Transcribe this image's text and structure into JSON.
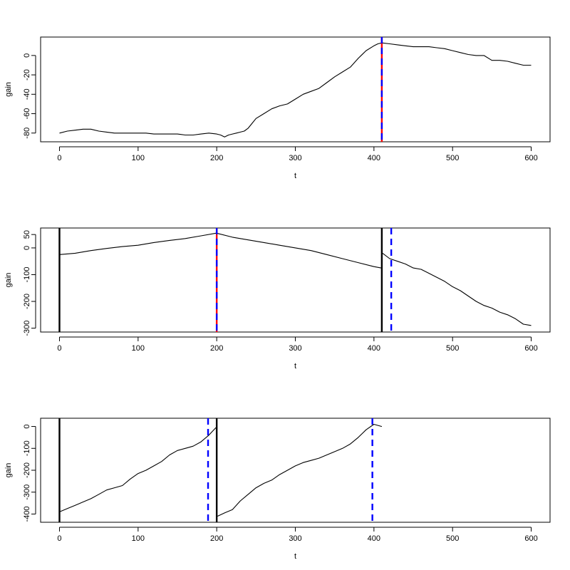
{
  "chart_data": [
    {
      "type": "line",
      "xlabel": "t",
      "ylabel": "gain",
      "xlim": [
        0,
        600
      ],
      "ylim": [
        -85,
        15
      ],
      "xticks": [
        0,
        100,
        200,
        300,
        400,
        500,
        600
      ],
      "yticks": [
        -80,
        -60,
        -40,
        -20,
        0
      ],
      "series": [
        {
          "color": "#000000",
          "x": [
            0,
            10,
            20,
            30,
            40,
            50,
            60,
            70,
            80,
            90,
            100,
            110,
            120,
            130,
            140,
            150,
            160,
            170,
            180,
            190,
            200,
            205,
            210,
            215,
            220,
            225,
            230,
            235,
            240,
            245,
            250,
            260,
            270,
            280,
            290,
            300,
            310,
            320,
            330,
            340,
            350,
            360,
            370,
            380,
            390,
            400,
            405,
            410,
            420,
            430,
            440,
            450,
            460,
            470,
            480,
            490,
            500,
            510,
            520,
            530,
            540,
            550,
            560,
            570,
            580,
            590,
            600
          ],
          "y": [
            -80,
            -78,
            -77,
            -76,
            -76,
            -78,
            -79,
            -80,
            -80,
            -80,
            -80,
            -80,
            -81,
            -81,
            -81,
            -81,
            -82,
            -82,
            -81,
            -80,
            -81,
            -82,
            -84,
            -82,
            -81,
            -80,
            -79,
            -78,
            -75,
            -70,
            -65,
            -60,
            -55,
            -52,
            -50,
            -45,
            -40,
            -37,
            -34,
            -28,
            -22,
            -17,
            -12,
            -3,
            5,
            10,
            12,
            13,
            12,
            11,
            10,
            9,
            9,
            9,
            8,
            7,
            5,
            3,
            1,
            0,
            0,
            -5,
            -5,
            -6,
            -8,
            -10,
            -10
          ]
        }
      ],
      "vlines": [
        {
          "x": 410,
          "color": "#ff0000",
          "style": "solid"
        },
        {
          "x": 410,
          "color": "#0000ff",
          "style": "dashed"
        }
      ]
    },
    {
      "type": "line",
      "xlabel": "t",
      "ylabel": "gain",
      "xlim": [
        0,
        600
      ],
      "ylim": [
        -300,
        60
      ],
      "xticks": [
        0,
        100,
        200,
        300,
        400,
        500,
        600
      ],
      "yticks": [
        -300,
        -200,
        -100,
        0,
        50
      ],
      "series": [
        {
          "color": "#000000",
          "x": [
            0,
            20,
            40,
            60,
            80,
            100,
            120,
            140,
            160,
            180,
            199
          ],
          "y": [
            -25,
            -20,
            -10,
            -2,
            5,
            10,
            20,
            28,
            35,
            45,
            55
          ]
        },
        {
          "color": "#000000",
          "x": [
            200,
            220,
            240,
            260,
            280,
            300,
            320,
            340,
            360,
            380,
            400,
            409
          ],
          "y": [
            55,
            40,
            30,
            20,
            10,
            0,
            -10,
            -25,
            -40,
            -55,
            -70,
            -75
          ]
        },
        {
          "color": "#000000",
          "x": [
            411,
            420,
            430,
            440,
            450,
            460,
            470,
            480,
            490,
            500,
            510,
            520,
            530,
            540,
            550,
            560,
            570,
            580,
            590,
            600
          ],
          "y": [
            -20,
            -40,
            -50,
            -60,
            -75,
            -80,
            -95,
            -110,
            -125,
            -145,
            -160,
            -180,
            -200,
            -215,
            -225,
            -240,
            -250,
            -265,
            -285,
            -290
          ]
        }
      ],
      "vlines": [
        {
          "x": 0,
          "color": "#000000",
          "style": "solid"
        },
        {
          "x": 410,
          "color": "#000000",
          "style": "solid"
        },
        {
          "x": 200,
          "color": "#ff0000",
          "style": "solid"
        },
        {
          "x": 200,
          "color": "#0000ff",
          "style": "dashed"
        },
        {
          "x": 422,
          "color": "#0000ff",
          "style": "dashed"
        }
      ]
    },
    {
      "type": "line",
      "xlabel": "t",
      "ylabel": "gain",
      "xlim": [
        0,
        600
      ],
      "ylim": [
        -420,
        20
      ],
      "xticks": [
        0,
        100,
        200,
        300,
        400,
        500,
        600
      ],
      "yticks": [
        -400,
        -300,
        -200,
        -100,
        0
      ],
      "series": [
        {
          "color": "#000000",
          "x": [
            0,
            10,
            20,
            30,
            40,
            50,
            60,
            70,
            80,
            90,
            100,
            110,
            120,
            130,
            140,
            150,
            160,
            170,
            180,
            190,
            199
          ],
          "y": [
            -390,
            -375,
            -360,
            -345,
            -330,
            -310,
            -290,
            -280,
            -270,
            -240,
            -215,
            -200,
            -180,
            -160,
            -130,
            -110,
            -100,
            -90,
            -70,
            -40,
            -5
          ]
        },
        {
          "color": "#000000",
          "x": [
            201,
            210,
            220,
            230,
            240,
            250,
            260,
            270,
            280,
            290,
            300,
            310,
            320,
            330,
            340,
            350,
            360,
            370,
            380,
            390,
            400,
            410
          ],
          "y": [
            -410,
            -395,
            -380,
            -340,
            -310,
            -280,
            -260,
            -245,
            -220,
            -200,
            -180,
            -165,
            -155,
            -145,
            -130,
            -115,
            -100,
            -80,
            -50,
            -15,
            10,
            0
          ]
        }
      ],
      "vlines": [
        {
          "x": 0,
          "color": "#000000",
          "style": "solid"
        },
        {
          "x": 200,
          "color": "#000000",
          "style": "solid"
        },
        {
          "x": 189,
          "color": "#0000ff",
          "style": "dashed"
        },
        {
          "x": 398,
          "color": "#0000ff",
          "style": "dashed"
        }
      ]
    }
  ]
}
